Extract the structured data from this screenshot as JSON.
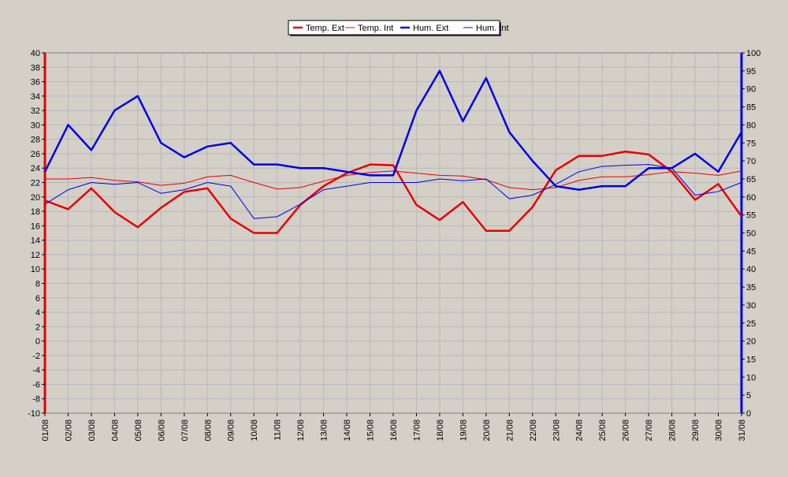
{
  "colors": {
    "temp_ext": "#e60000",
    "temp_int": "#e60000",
    "hum_ext": "#0000e6",
    "hum_int": "#0000e6",
    "grid": "#b8b8b8",
    "plot_bg": "#d4d0c8"
  },
  "chart_data": {
    "type": "line",
    "title": "",
    "xlabel": "",
    "ylabel": "",
    "legend_position": "top-center",
    "grid": true,
    "categories": [
      "01/08",
      "02/08",
      "03/08",
      "04/08",
      "05/08",
      "06/08",
      "07/08",
      "08/08",
      "09/08",
      "10/08",
      "11/08",
      "12/08",
      "13/08",
      "14/08",
      "15/08",
      "16/08",
      "17/08",
      "18/08",
      "19/08",
      "20/08",
      "21/08",
      "22/08",
      "23/08",
      "24/08",
      "25/08",
      "26/08",
      "27/08",
      "28/08",
      "29/08",
      "30/08",
      "31/08"
    ],
    "y_left": {
      "min": -10,
      "max": 40,
      "step": 2
    },
    "y_right": {
      "min": 0,
      "max": 100,
      "step": 5
    },
    "series": [
      {
        "name": "Temp. Ext",
        "axis": "left",
        "color": "#e60000",
        "bold": true,
        "values": [
          19.5,
          18.3,
          21.2,
          17.9,
          15.8,
          18.5,
          20.7,
          21.2,
          17.0,
          15.0,
          15.0,
          18.9,
          21.5,
          23.3,
          24.5,
          24.4,
          18.9,
          16.8,
          19.3,
          15.3,
          15.3,
          18.6,
          23.7,
          25.7,
          25.7,
          26.3,
          25.9,
          23.5,
          19.6,
          21.8,
          17.3
        ]
      },
      {
        "name": "Temp. Int",
        "axis": "left",
        "color": "#e60000",
        "bold": false,
        "values": [
          22.5,
          22.5,
          22.7,
          22.3,
          22.1,
          21.6,
          21.9,
          22.8,
          23.0,
          22.0,
          21.1,
          21.3,
          22.2,
          23.0,
          23.4,
          23.6,
          23.3,
          23.0,
          22.9,
          22.4,
          21.3,
          21.0,
          21.3,
          22.3,
          22.8,
          22.8,
          23.1,
          23.5,
          23.3,
          23.0,
          23.6
        ]
      },
      {
        "name": "Hum. Ext",
        "axis": "right",
        "color": "#0000e6",
        "bold": true,
        "values": [
          67,
          80,
          73,
          84,
          88,
          75,
          71,
          74,
          75,
          69,
          69,
          68,
          68,
          67,
          66,
          66,
          84,
          95,
          81,
          93,
          78,
          70,
          63,
          62,
          63,
          63,
          68,
          68,
          72,
          67,
          78
        ]
      },
      {
        "name": "Hum. Int",
        "axis": "right",
        "color": "#0000e6",
        "bold": false,
        "values": [
          58,
          62,
          64,
          63.5,
          64,
          61,
          62,
          64,
          63,
          54,
          54.5,
          58,
          62,
          63,
          64,
          64,
          64,
          65,
          64.5,
          65,
          59.5,
          60.5,
          63.5,
          67,
          68.5,
          68.8,
          69,
          68,
          60.5,
          61.5,
          64
        ]
      }
    ]
  }
}
